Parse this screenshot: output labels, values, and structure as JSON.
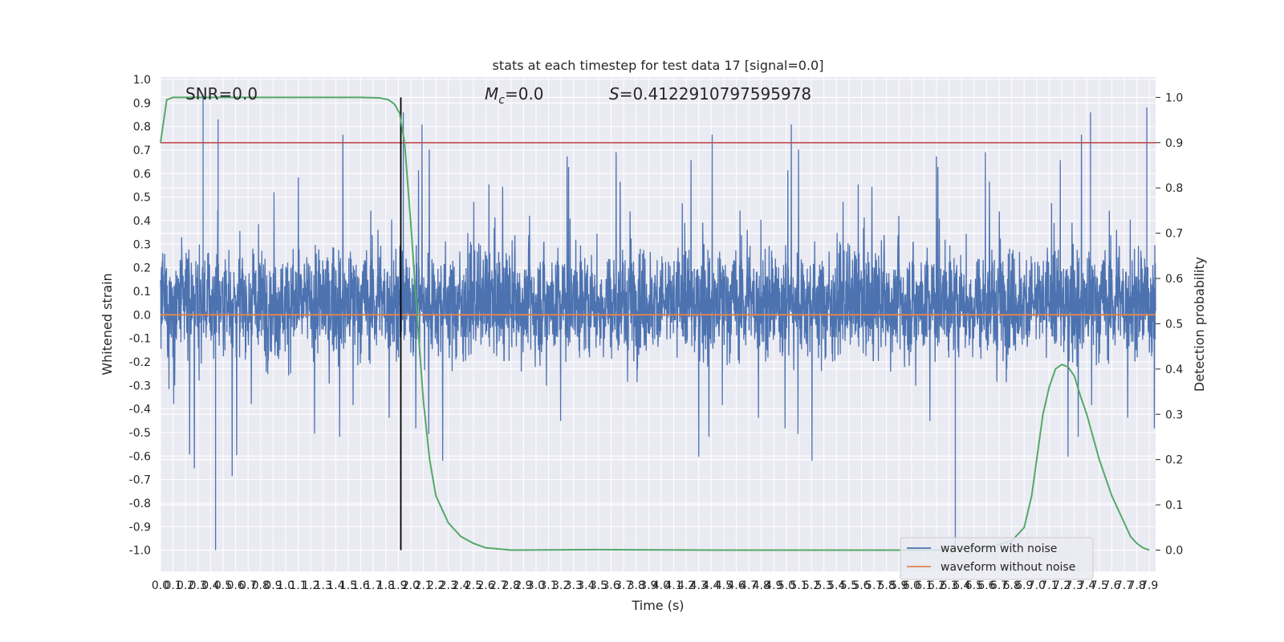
{
  "chart_data": {
    "type": "line",
    "title": "stats at each timestep for test data 17 [signal=0.0]",
    "xlabel": "Time (s)",
    "ylabel": "Whitened strain",
    "y2label": "Detection probability",
    "xlim": [
      0,
      7.95
    ],
    "ylim": [
      -1.09,
      1.01
    ],
    "y2lim": [
      -0.047,
      1.045
    ],
    "x_ticks": [
      "0.0",
      "0.1",
      "0.2",
      "0.3",
      "0.4",
      "0.5",
      "0.6",
      "0.7",
      "0.8",
      "0.9",
      "1.0",
      "1.1",
      "1.2",
      "1.3",
      "1.4",
      "1.5",
      "1.6",
      "1.7",
      "1.8",
      "1.9",
      "2.0",
      "2.1",
      "2.2",
      "2.3",
      "2.4",
      "2.5",
      "2.6",
      "2.7",
      "2.8",
      "2.9",
      "3.0",
      "3.1",
      "3.2",
      "3.3",
      "3.4",
      "3.5",
      "3.6",
      "3.7",
      "3.8",
      "3.9",
      "4.0",
      "4.1",
      "4.2",
      "4.3",
      "4.4",
      "4.5",
      "4.6",
      "4.7",
      "4.8",
      "4.9",
      "5.0",
      "5.1",
      "5.2",
      "5.3",
      "5.4",
      "5.5",
      "5.6",
      "5.7",
      "5.8",
      "5.9",
      "6.0",
      "6.1",
      "6.2",
      "6.3",
      "6.4",
      "6.5",
      "6.6",
      "6.7",
      "6.8",
      "6.9",
      "7.0",
      "7.1",
      "7.2",
      "7.3",
      "7.4",
      "7.5",
      "7.6",
      "7.7",
      "7.8",
      "7.9"
    ],
    "y_ticks": [
      "1.0",
      "0.9",
      "0.8",
      "0.7",
      "0.6",
      "0.5",
      "0.4",
      "0.3",
      "0.2",
      "0.1",
      "0.0",
      "-0.1",
      "-0.2",
      "-0.3",
      "-0.4",
      "-0.5",
      "-0.6",
      "-0.7",
      "-0.8",
      "-0.9",
      "-1.0"
    ],
    "y2_ticks": [
      "1.0",
      "0.9",
      "0.8",
      "0.7",
      "0.6",
      "0.5",
      "0.4",
      "0.3",
      "0.2",
      "0.1",
      "0.0"
    ],
    "annotations": {
      "snr": "SNR=0.0",
      "mc_symbol": "M",
      "mc_sub": "c",
      "mc_value": "=0.0",
      "s_symbol": "S",
      "s_value": "=0.4122910797595978"
    },
    "threshold_y2": 0.9,
    "marker_x": 1.92,
    "legend": {
      "placement": "lower-right",
      "entries": [
        "waveform with noise",
        "waveform without noise"
      ]
    },
    "grid": true,
    "colors": {
      "noise": "#4c72b0",
      "clean": "#dd8452",
      "probability": "#55a868",
      "threshold": "#c44e52",
      "marker": "#000000",
      "background": "#eaeaf2",
      "grid": "#ffffff"
    },
    "series": [
      {
        "name": "waveform with noise",
        "description_values": "dense whitened strain noise, amplitude mostly within -0.45..0.55, peaks near 0.93 and -1.0",
        "peak_points": [
          [
            0.34,
            0.93
          ],
          [
            0.44,
            -1.0
          ],
          [
            0.46,
            0.83
          ],
          [
            6.35,
            -1.0
          ],
          [
            7.88,
            0.88
          ],
          [
            7.43,
            0.86
          ],
          [
            1.94,
            0.86
          ]
        ]
      },
      {
        "name": "waveform without noise",
        "x": [
          0,
          7.95
        ],
        "values": [
          0.0,
          0.0
        ]
      },
      {
        "name": "Detection probability",
        "axis": "right",
        "x": [
          0.0,
          0.05,
          0.1,
          0.2,
          0.4,
          0.8,
          1.2,
          1.6,
          1.75,
          1.82,
          1.87,
          1.91,
          1.95,
          2.0,
          2.05,
          2.1,
          2.15,
          2.2,
          2.3,
          2.4,
          2.5,
          2.6,
          2.8,
          3.5,
          4.5,
          5.5,
          6.2,
          6.6,
          6.8,
          6.9,
          6.96,
          7.0,
          7.05,
          7.1,
          7.15,
          7.2,
          7.25,
          7.3,
          7.35,
          7.4,
          7.45,
          7.5,
          7.55,
          7.6,
          7.7,
          7.75,
          7.8,
          7.85,
          7.9
        ],
        "values": [
          0.9,
          0.995,
          1.0,
          1.0,
          1.0,
          1.0,
          1.0,
          1.0,
          0.999,
          0.995,
          0.985,
          0.965,
          0.9,
          0.72,
          0.52,
          0.33,
          0.2,
          0.12,
          0.06,
          0.03,
          0.015,
          0.005,
          0.0,
          0.001,
          0.0,
          0.0,
          0.0,
          0.005,
          0.02,
          0.05,
          0.12,
          0.2,
          0.3,
          0.36,
          0.4,
          0.41,
          0.405,
          0.385,
          0.34,
          0.3,
          0.25,
          0.2,
          0.16,
          0.12,
          0.06,
          0.03,
          0.015,
          0.005,
          0.0
        ]
      }
    ]
  }
}
